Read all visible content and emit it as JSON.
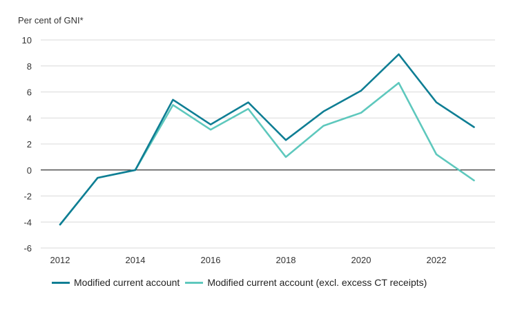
{
  "chart_data": {
    "type": "line",
    "ylabel": "Per cent of GNI*",
    "x": [
      2012,
      2013,
      2014,
      2015,
      2016,
      2017,
      2018,
      2019,
      2020,
      2021,
      2022,
      2023
    ],
    "xticks": [
      "2012",
      "2014",
      "2016",
      "2018",
      "2020",
      "2022"
    ],
    "yticks": [
      "10",
      "8",
      "6",
      "4",
      "2",
      "0",
      "-2",
      "-4",
      "-6"
    ],
    "ylim": [
      -6,
      10
    ],
    "grid": true,
    "legend": "bottom",
    "series": [
      {
        "name": "Modified current account",
        "color": "#0f7e94",
        "values": [
          -4.2,
          -0.6,
          0.0,
          5.4,
          3.5,
          5.2,
          2.3,
          4.5,
          6.1,
          8.9,
          5.2,
          3.3
        ]
      },
      {
        "name": "Modified current account (excl. excess CT receipts)",
        "color": "#5ec8bd",
        "values": [
          -4.2,
          -0.6,
          0.0,
          5.0,
          3.1,
          4.7,
          1.0,
          3.4,
          4.4,
          6.7,
          1.2,
          -0.8
        ]
      }
    ]
  }
}
